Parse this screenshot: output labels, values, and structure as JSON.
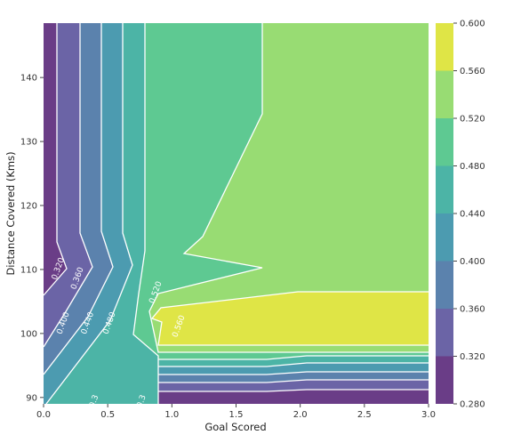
{
  "chart_data": {
    "type": "contour",
    "title": "",
    "xlabel": "Goal Scored",
    "ylabel": "Distance Covered (Kms)",
    "xlim": [
      0.0,
      3.0
    ],
    "ylim": [
      89,
      148.5
    ],
    "x_ticks": [
      0.0,
      0.5,
      1.0,
      1.5,
      2.0,
      2.5,
      3.0
    ],
    "x_tick_labels": [
      "0.0",
      "0.5",
      "1.0",
      "1.5",
      "2.0",
      "2.5",
      "3.0"
    ],
    "y_ticks": [
      90,
      100,
      110,
      120,
      130,
      140
    ],
    "y_tick_labels": [
      "90",
      "100",
      "110",
      "120",
      "130",
      "140"
    ],
    "colorbar": {
      "levels": [
        0.28,
        0.32,
        0.36,
        0.4,
        0.44,
        0.48,
        0.52,
        0.56,
        0.6
      ],
      "tick_labels": [
        "0.280",
        "0.320",
        "0.360",
        "0.400",
        "0.440",
        "0.480",
        "0.520",
        "0.560",
        "0.600"
      ],
      "colors": [
        "#6a3d87",
        "#6b64a6",
        "#5b82ad",
        "#4c9bb0",
        "#4cb4a6",
        "#5ec992",
        "#98dc73",
        "#dfe546"
      ]
    },
    "contour_labels": [
      {
        "text": "0.320",
        "x": 0.13,
        "y": 110
      },
      {
        "text": "0.360",
        "x": 0.28,
        "y": 108.5
      },
      {
        "text": "0.400",
        "x": 0.17,
        "y": 101.5
      },
      {
        "text": "0.440",
        "x": 0.36,
        "y": 101.5
      },
      {
        "text": "0.480",
        "x": 0.53,
        "y": 101.5
      },
      {
        "text": "0.520",
        "x": 0.89,
        "y": 106.3
      },
      {
        "text": "0.560",
        "x": 1.07,
        "y": 101
      },
      {
        "text": "0.3",
        "x": 0.41,
        "y": 89.3
      },
      {
        "text": "0.3",
        "x": 0.78,
        "y": 89.3
      }
    ],
    "grid": false
  }
}
